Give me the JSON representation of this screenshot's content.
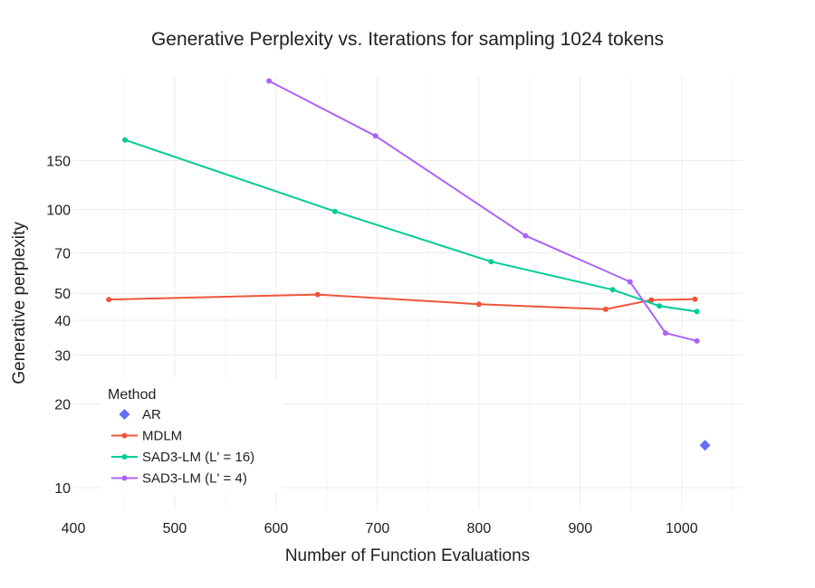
{
  "chart_data": {
    "type": "line",
    "title": "Generative Perplexity vs. Iterations for sampling 1024 tokens",
    "xlabel": "Number of Function Evaluations",
    "ylabel": "Generative perplexity",
    "y_scale": "log",
    "xlim": [
      400,
      1060
    ],
    "ylim": [
      8.3,
      300
    ],
    "x_ticks": [
      400,
      500,
      600,
      700,
      800,
      900,
      1000
    ],
    "y_ticks": [
      10,
      20,
      30,
      40,
      50,
      70,
      100,
      150
    ],
    "grid": true,
    "legend": {
      "title": "Method",
      "placement": "bottom-left"
    },
    "series": [
      {
        "name": "AR",
        "color": "#636efa",
        "marker": "diamond",
        "mode": "markers",
        "points": [
          [
            1023,
            14.2
          ]
        ]
      },
      {
        "name": "MDLM",
        "color": "#ef553b",
        "marker": "circle",
        "mode": "lines+markers",
        "points": [
          [
            435,
            47.5
          ],
          [
            641,
            49.5
          ],
          [
            800,
            45.7
          ],
          [
            925,
            43.8
          ],
          [
            970,
            47.3
          ],
          [
            1013,
            47.6
          ]
        ]
      },
      {
        "name": "SAD3-LM (L' = 16)",
        "color": "#00cc96",
        "marker": "circle",
        "mode": "lines+markers",
        "points": [
          [
            451,
            178
          ],
          [
            658,
            98.5
          ],
          [
            812,
            65
          ],
          [
            932,
            51.5
          ],
          [
            978,
            45
          ],
          [
            1015,
            43
          ]
        ]
      },
      {
        "name": "SAD3-LM (L' = 4)",
        "color": "#ab63fa",
        "marker": "circle",
        "mode": "lines+markers",
        "points": [
          [
            593,
            290
          ],
          [
            698,
            184
          ],
          [
            846,
            80.5
          ],
          [
            949,
            55
          ],
          [
            984,
            36
          ],
          [
            1015,
            33.7
          ]
        ]
      }
    ]
  }
}
